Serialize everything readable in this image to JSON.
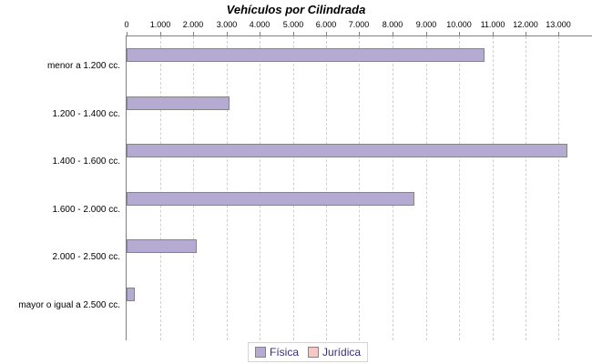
{
  "title": "Vehículos por Cilindrada",
  "colors": {
    "fisica_fill": "#b5aad2",
    "juridica_fill": "#f8c6c4",
    "bar_border": "#848484",
    "axis_line": "#808080",
    "gridline": "#cfcfcf",
    "legend_text": "#3b2d7e",
    "tick_label": "#000000",
    "background": "#ffffff"
  },
  "chart_data": {
    "type": "bar",
    "orientation": "horizontal",
    "title": "Vehículos por Cilindrada",
    "categories": [
      "menor a 1.200 cc.",
      "1.200 - 1.400 cc.",
      "1.400 - 1.600 cc.",
      "1.600 - 2.000 cc.",
      "2.000 - 2.500 cc.",
      "mayor o igual a 2.500 cc."
    ],
    "series": [
      {
        "name": "Física",
        "color": "#b5aad2",
        "values": [
          10700,
          3050,
          13200,
          8600,
          2050,
          200
        ]
      },
      {
        "name": "Jurídica",
        "color": "#f8c6c4",
        "values": [
          0,
          0,
          0,
          0,
          0,
          0
        ]
      }
    ],
    "xlabel": "",
    "ylabel": "",
    "xlim": [
      0,
      14000
    ],
    "xticks": [
      0,
      1000,
      2000,
      3000,
      4000,
      5000,
      6000,
      7000,
      8000,
      9000,
      10000,
      11000,
      12000,
      13000
    ],
    "xtick_labels": [
      "0",
      "1.000",
      "2.000",
      "3.000",
      "4.000",
      "5.000",
      "6.000",
      "7.000",
      "8.000",
      "9.000",
      "10.000",
      "11.000",
      "12.000",
      "13.000"
    ],
    "grid": "vertical-dashed",
    "legend_position": "bottom-center",
    "legend": [
      {
        "label": "Física",
        "swatch": "#b5aad2"
      },
      {
        "label": "Jurídica",
        "swatch": "#f8c6c4"
      }
    ]
  }
}
